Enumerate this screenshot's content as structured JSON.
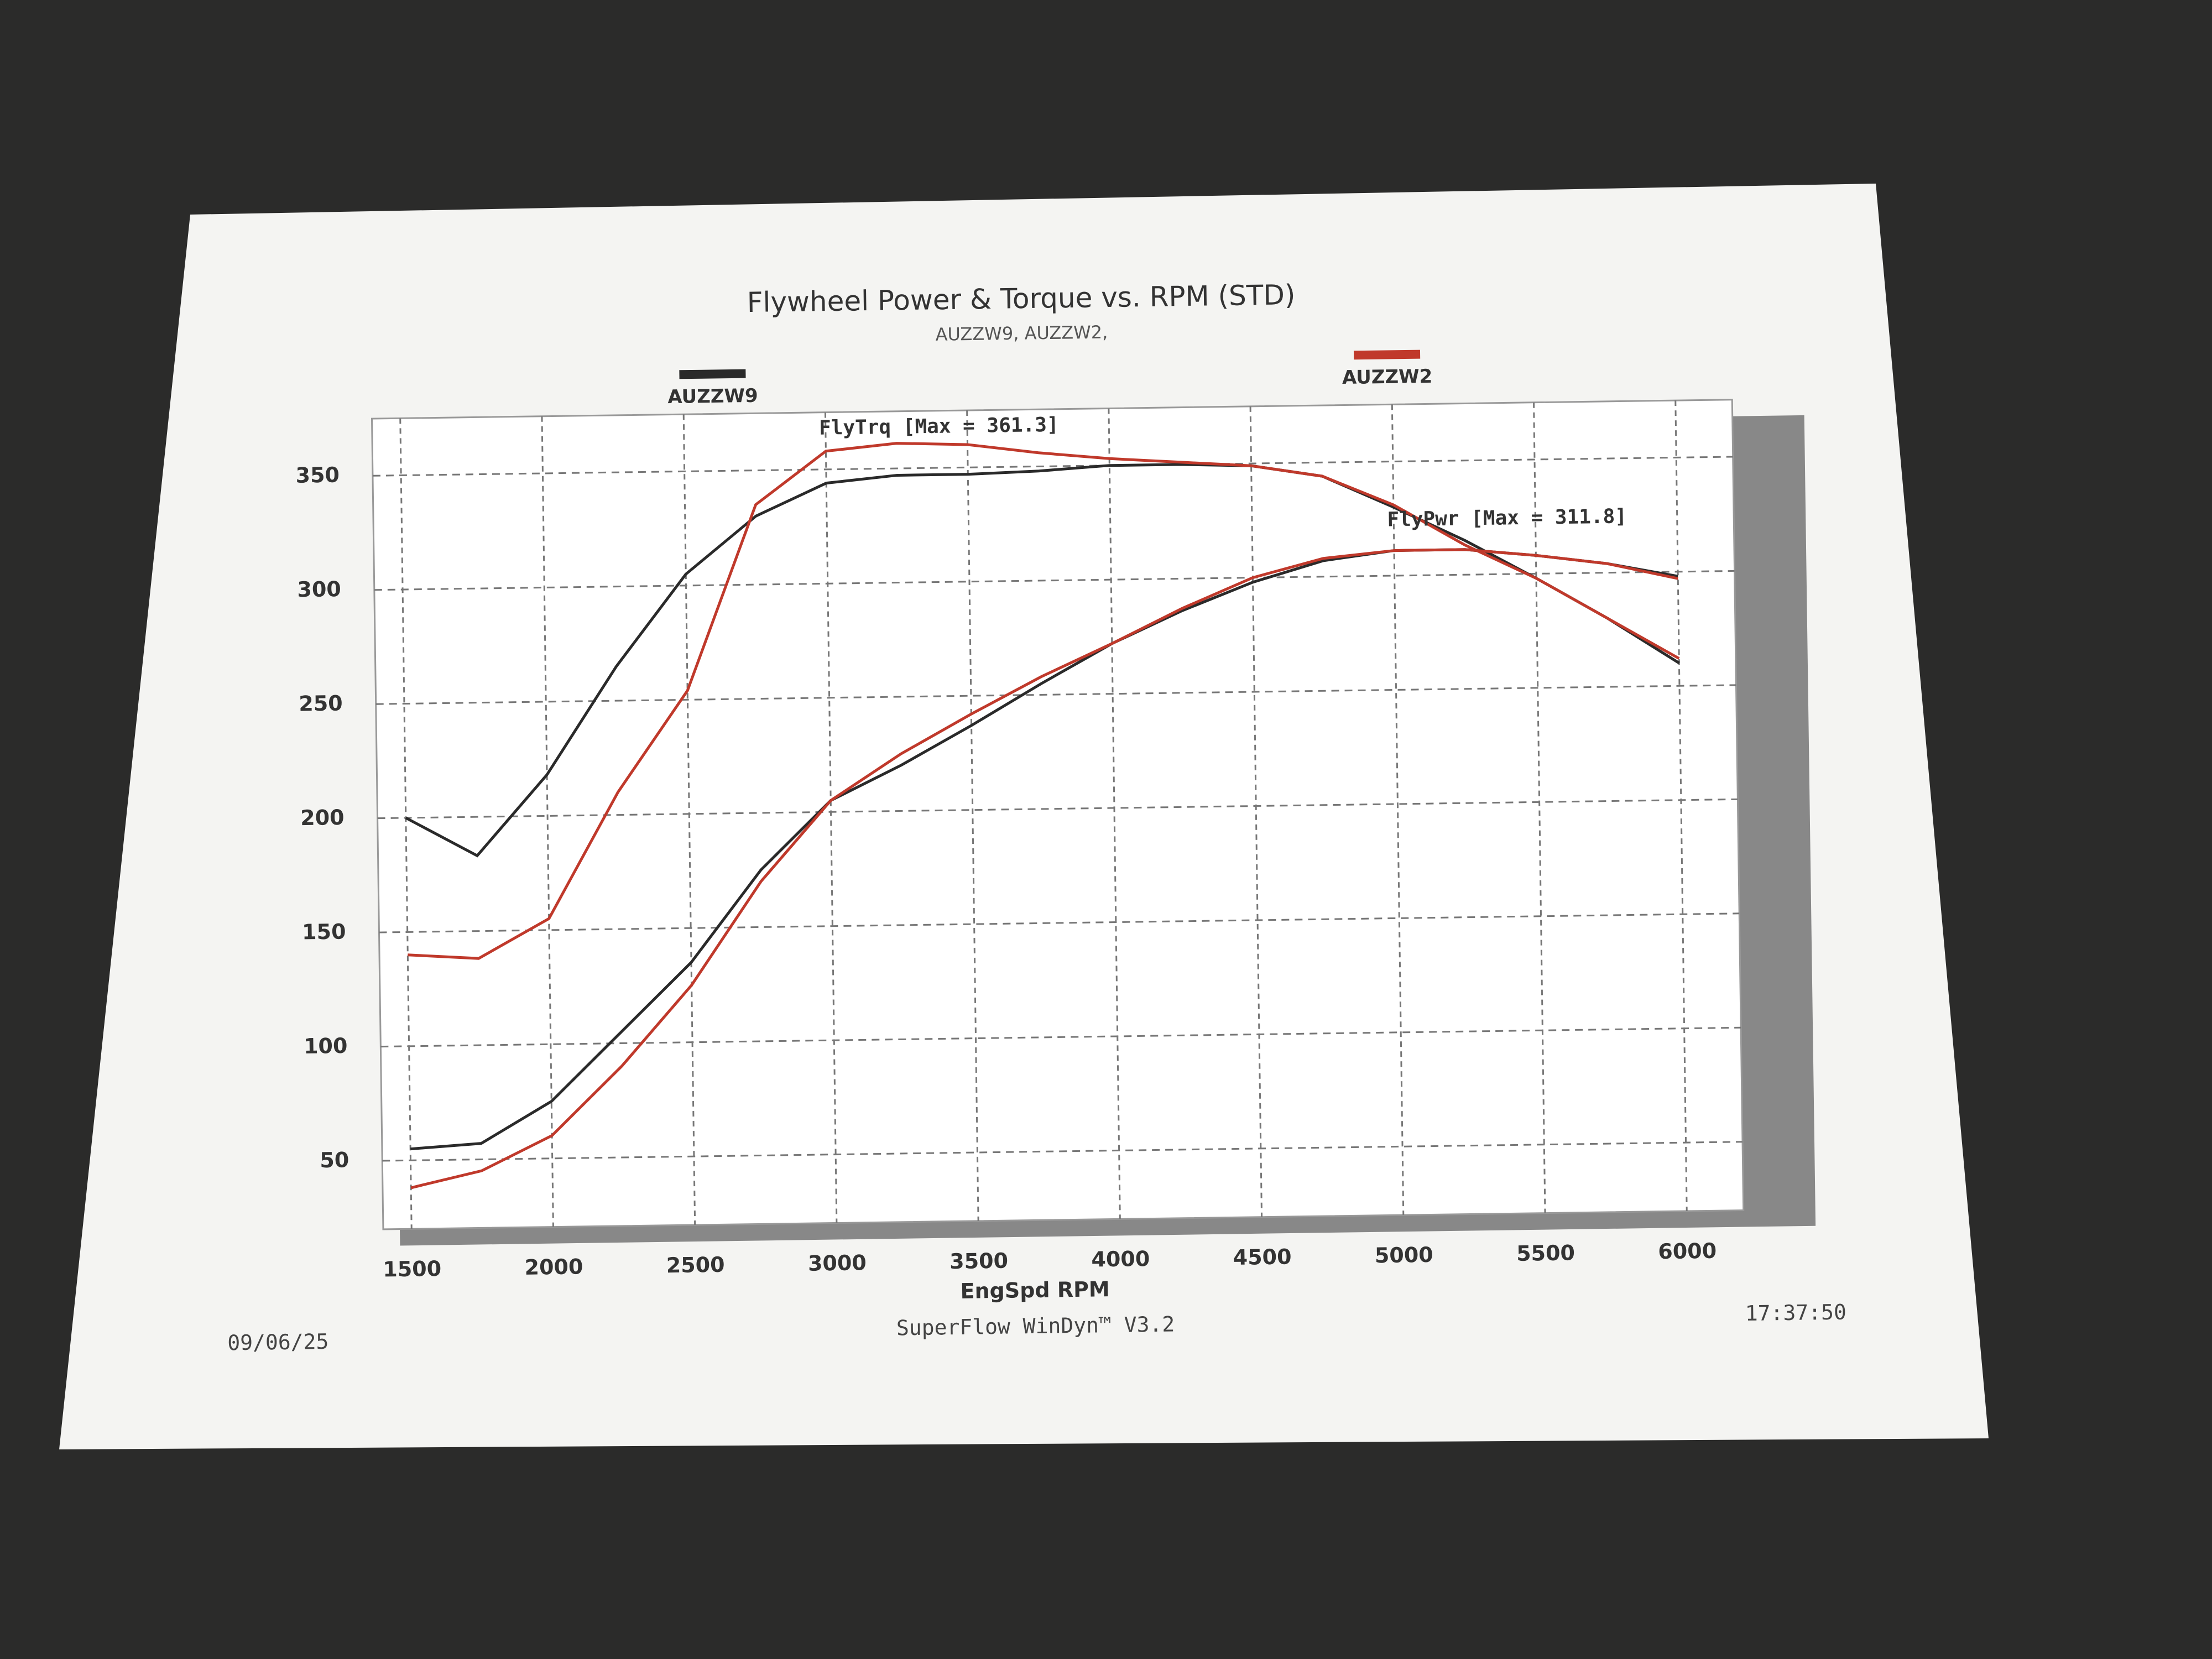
{
  "chart_data": {
    "type": "line",
    "title": "Flywheel Power & Torque vs. RPM (STD)",
    "subtitle": "AUZZW9, AUZZW2,",
    "x_label": "EngSpd RPM",
    "x": [
      1500,
      1750,
      2000,
      2250,
      2500,
      2750,
      3000,
      3250,
      3500,
      3750,
      4000,
      4250,
      4500,
      4750,
      5000,
      5250,
      5500,
      5750,
      6000
    ],
    "series": [
      {
        "name": "AUZZW9",
        "color": "#2a2a2a",
        "values": [
          200,
          183,
          218,
          265,
          305,
          330,
          344,
          347,
          347,
          348,
          350,
          350,
          349,
          344,
          330,
          315,
          298,
          280,
          260
        ],
        "power": [
          55,
          57,
          75,
          105,
          135,
          175,
          205,
          220,
          237,
          255,
          272,
          286,
          298,
          307,
          311,
          311,
          308,
          304,
          298
        ]
      },
      {
        "name": "AUZZW2",
        "color": "#c0392b",
        "values": [
          140,
          138,
          155,
          210,
          254,
          335,
          358,
          361,
          360,
          356,
          353,
          351,
          349,
          344,
          331,
          313,
          298,
          280,
          262
        ],
        "power": [
          38,
          45,
          60,
          90,
          125,
          170,
          205,
          225,
          242,
          258,
          272,
          287,
          300,
          308,
          311,
          311,
          308,
          304,
          297
        ]
      }
    ],
    "annotations": [
      "FlyTrq [Max = 361.3]",
      "FlyPwr [Max = 311.8]"
    ],
    "xlim": [
      1400,
      6200
    ],
    "ylim": [
      20,
      375
    ],
    "xticks": [
      1500,
      2000,
      2500,
      3000,
      3500,
      4000,
      4500,
      5000,
      5500,
      6000
    ],
    "yticks": [
      50,
      100,
      150,
      200,
      250,
      300,
      350
    ],
    "grid": true,
    "footer": {
      "date": "09/06/25",
      "software": "SuperFlow WinDyn™ V3.2",
      "time": "17:37:50"
    }
  }
}
